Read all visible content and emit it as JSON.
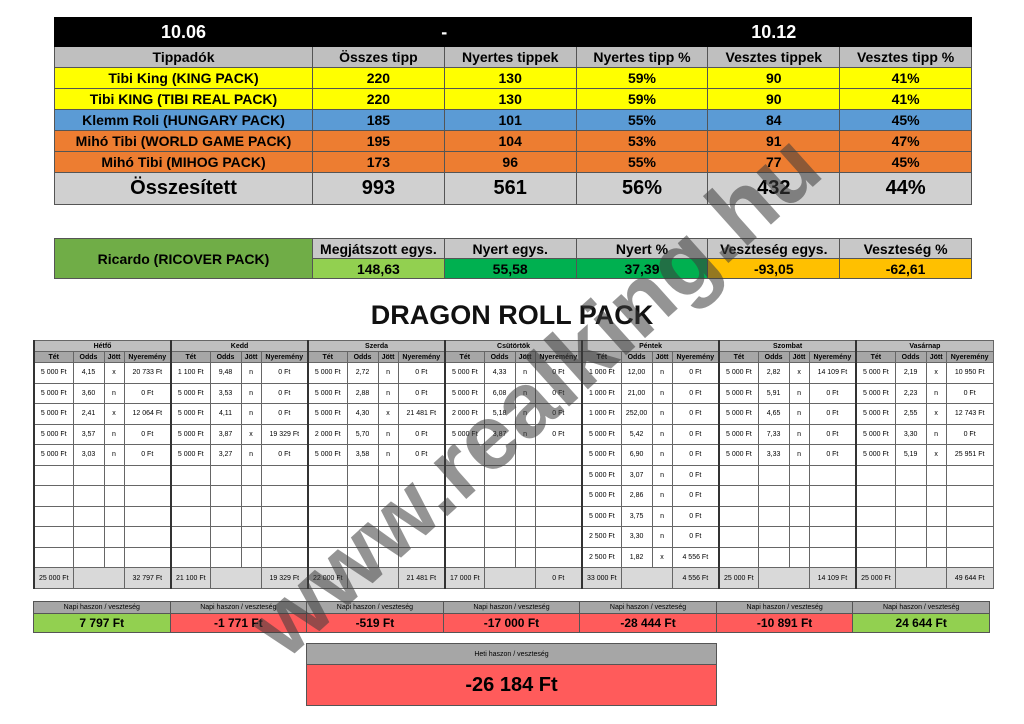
{
  "summary": {
    "date_from": "10.06",
    "date_sep": "-",
    "date_to": "10.12",
    "headers": [
      "Tippadók",
      "Összes tipp",
      "Nyertes tippek",
      "Nyertes tipp %",
      "Vesztes tippek",
      "Vesztes tipp %"
    ],
    "rows": [
      {
        "name": "Tibi King (KING PACK)",
        "color": "#ffff00",
        "cells": [
          "220",
          "130",
          "59%",
          "90",
          "41%"
        ]
      },
      {
        "name": "Tibi KING (TIBI REAL PACK)",
        "color": "#ffff00",
        "cells": [
          "220",
          "130",
          "59%",
          "90",
          "41%"
        ]
      },
      {
        "name": "Klemm Roli (HUNGARY PACK)",
        "color": "#5b9bd5",
        "cells": [
          "185",
          "101",
          "55%",
          "84",
          "45%"
        ]
      },
      {
        "name": "Mihó Tibi (WORLD GAME PACK)",
        "color": "#ed7d31",
        "cells": [
          "195",
          "104",
          "53%",
          "91",
          "47%"
        ]
      },
      {
        "name": "Mihó Tibi (MIHOG PACK)",
        "color": "#ed7d31",
        "cells": [
          "173",
          "96",
          "55%",
          "77",
          "45%"
        ]
      }
    ],
    "total": {
      "label": "Összesített",
      "cells": [
        "993",
        "561",
        "56%",
        "432",
        "44%"
      ]
    }
  },
  "ricardo": {
    "name": "Ricardo (RICOVER PACK)",
    "headers": [
      "Megjátszott egys.",
      "Nyert egys.",
      "Nyert %",
      "Veszteség egys.",
      "Veszteség %"
    ],
    "values": [
      "148,63",
      "55,58",
      "37,39",
      "-93,05",
      "-62,61"
    ],
    "colors": [
      "#92d050",
      "#00b050",
      "#00b050",
      "#ffc000",
      "#ffc000"
    ]
  },
  "title": "DRAGON ROLL PACK",
  "week": {
    "col_headers": [
      "Tét",
      "Odds",
      "Jött",
      "Nyeremény"
    ],
    "days": [
      {
        "name": "Hétfő",
        "rows": [
          [
            "5 000 Ft",
            "4,15",
            "x",
            "20 733 Ft"
          ],
          [
            "5 000 Ft",
            "3,60",
            "n",
            "0 Ft"
          ],
          [
            "5 000 Ft",
            "2,41",
            "x",
            "12 064 Ft"
          ],
          [
            "5 000 Ft",
            "3,57",
            "n",
            "0 Ft"
          ],
          [
            "5 000 Ft",
            "3,03",
            "n",
            "0 Ft"
          ]
        ],
        "total_stake": "25 000 Ft",
        "total_win": "32 797 Ft",
        "daily_label": "Napi haszon / veszteség",
        "daily": "7 797 Ft",
        "positive": true
      },
      {
        "name": "Kedd",
        "rows": [
          [
            "1 100 Ft",
            "9,48",
            "n",
            "0 Ft"
          ],
          [
            "5 000 Ft",
            "3,53",
            "n",
            "0 Ft"
          ],
          [
            "5 000 Ft",
            "4,11",
            "n",
            "0 Ft"
          ],
          [
            "5 000 Ft",
            "3,87",
            "x",
            "19 329 Ft"
          ],
          [
            "5 000 Ft",
            "3,27",
            "n",
            "0 Ft"
          ]
        ],
        "total_stake": "21 100 Ft",
        "total_win": "19 329 Ft",
        "daily_label": "Napi haszon / veszteség",
        "daily": "-1 771 Ft",
        "positive": false
      },
      {
        "name": "Szerda",
        "rows": [
          [
            "5 000 Ft",
            "2,72",
            "n",
            "0 Ft"
          ],
          [
            "5 000 Ft",
            "2,88",
            "n",
            "0 Ft"
          ],
          [
            "5 000 Ft",
            "4,30",
            "x",
            "21 481 Ft"
          ],
          [
            "2 000 Ft",
            "5,70",
            "n",
            "0 Ft"
          ],
          [
            "5 000 Ft",
            "3,58",
            "n",
            "0 Ft"
          ]
        ],
        "total_stake": "22 000 Ft",
        "total_win": "21 481 Ft",
        "daily_label": "Napi haszon / veszteség",
        "daily": "-519 Ft",
        "positive": false
      },
      {
        "name": "Csütörtök",
        "rows": [
          [
            "5 000 Ft",
            "4,33",
            "n",
            "0 Ft"
          ],
          [
            "5 000 Ft",
            "6,08",
            "n",
            "0 Ft"
          ],
          [
            "2 000 Ft",
            "5,18",
            "n",
            "0 Ft"
          ],
          [
            "5 000 Ft",
            "3,87",
            "n",
            "0 Ft"
          ]
        ],
        "total_stake": "17 000 Ft",
        "total_win": "0 Ft",
        "daily_label": "Napi haszon / veszteség",
        "daily": "-17 000 Ft",
        "positive": false
      },
      {
        "name": "Péntek",
        "rows": [
          [
            "1 000 Ft",
            "12,00",
            "n",
            "0 Ft"
          ],
          [
            "1 000 Ft",
            "21,00",
            "n",
            "0 Ft"
          ],
          [
            "1 000 Ft",
            "252,00",
            "n",
            "0 Ft"
          ],
          [
            "5 000 Ft",
            "5,42",
            "n",
            "0 Ft"
          ],
          [
            "5 000 Ft",
            "6,90",
            "n",
            "0 Ft"
          ],
          [
            "5 000 Ft",
            "3,07",
            "n",
            "0 Ft"
          ],
          [
            "5 000 Ft",
            "2,86",
            "n",
            "0 Ft"
          ],
          [
            "5 000 Ft",
            "3,75",
            "n",
            "0 Ft"
          ],
          [
            "2 500 Ft",
            "3,30",
            "n",
            "0 Ft"
          ],
          [
            "2 500 Ft",
            "1,82",
            "x",
            "4 556 Ft"
          ]
        ],
        "total_stake": "33 000 Ft",
        "total_win": "4 556 Ft",
        "daily_label": "Napi haszon / veszteség",
        "daily": "-28 444 Ft",
        "positive": false
      },
      {
        "name": "Szombat",
        "rows": [
          [
            "5 000 Ft",
            "2,82",
            "x",
            "14 109 Ft"
          ],
          [
            "5 000 Ft",
            "5,91",
            "n",
            "0 Ft"
          ],
          [
            "5 000 Ft",
            "4,65",
            "n",
            "0 Ft"
          ],
          [
            "5 000 Ft",
            "7,33",
            "n",
            "0 Ft"
          ],
          [
            "5 000 Ft",
            "3,33",
            "n",
            "0 Ft"
          ]
        ],
        "total_stake": "25 000 Ft",
        "total_win": "14 109 Ft",
        "daily_label": "Napi haszon / veszteség",
        "daily": "-10 891 Ft",
        "positive": false
      },
      {
        "name": "Vasárnap",
        "rows": [
          [
            "5 000 Ft",
            "2,19",
            "x",
            "10 950 Ft"
          ],
          [
            "5 000 Ft",
            "2,23",
            "n",
            "0 Ft"
          ],
          [
            "5 000 Ft",
            "2,55",
            "x",
            "12 743 Ft"
          ],
          [
            "5 000 Ft",
            "3,30",
            "n",
            "0 Ft"
          ],
          [
            "5 000 Ft",
            "5,19",
            "x",
            "25 951 Ft"
          ]
        ],
        "total_stake": "25 000 Ft",
        "total_win": "49 644 Ft",
        "daily_label": "Napi haszon / veszteség",
        "daily": "24 644 Ft",
        "positive": true
      }
    ],
    "weekly_label": "Heti haszon / veszteség",
    "weekly": "-26 184 Ft"
  },
  "watermark": "www.realking.hu"
}
